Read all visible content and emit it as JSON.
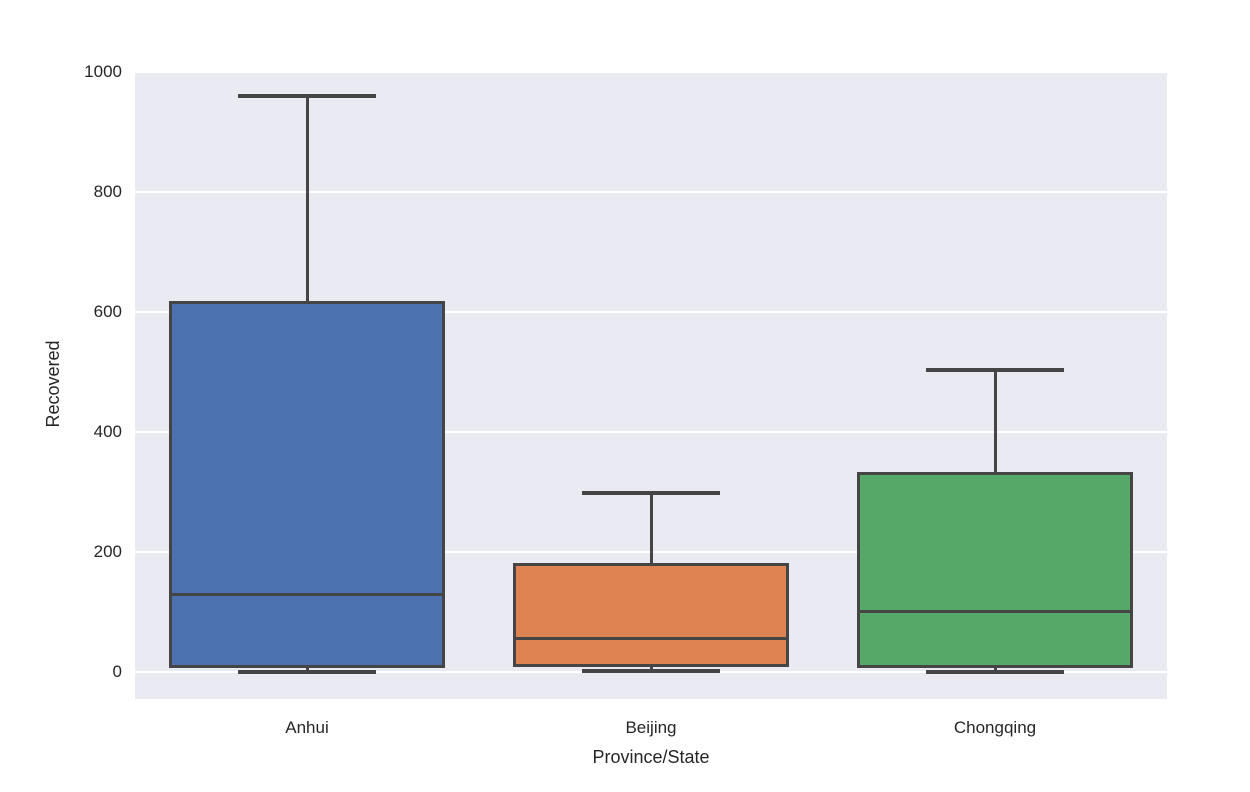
{
  "figure": {
    "background": "#ffffff"
  },
  "chart_data": {
    "type": "box",
    "title": "",
    "xlabel": "Province/State",
    "ylabel": "Recovered",
    "categories": [
      "Anhui",
      "Beijing",
      "Chongqing"
    ],
    "yticks": [
      0,
      200,
      400,
      600,
      800,
      1000
    ],
    "ylim": [
      -45,
      1002
    ],
    "grid": true,
    "legend": "none",
    "colors": {
      "plot_background": "#eaeaf2",
      "gridline": "#ffffff",
      "text": "#262626",
      "box_edge": "#454545"
    },
    "series": [
      {
        "name": "Anhui",
        "color": "#4c72b0",
        "min": 0,
        "q1": 6,
        "median": 130,
        "q3": 618,
        "max": 960
      },
      {
        "name": "Beijing",
        "color": "#dd8452",
        "min": 1,
        "q1": 9,
        "median": 56,
        "q3": 182,
        "max": 298
      },
      {
        "name": "Chongqing",
        "color": "#55a868",
        "min": 0,
        "q1": 6,
        "median": 101,
        "q3": 333,
        "max": 503
      }
    ]
  }
}
